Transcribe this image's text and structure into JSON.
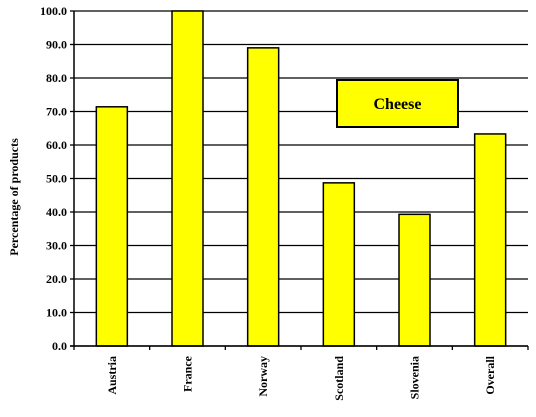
{
  "chart_data": {
    "type": "bar",
    "title": "",
    "xlabel": "",
    "ylabel": "Percentage of products",
    "categories": [
      "Austria",
      "France",
      "Norway",
      "Scotland",
      "Slovenia",
      "Overall"
    ],
    "values": [
      71.4,
      100.0,
      89.0,
      48.7,
      39.3,
      63.3
    ],
    "ylim": [
      0,
      100
    ],
    "yticks": [
      "0.0",
      "10.0",
      "20.0",
      "30.0",
      "40.0",
      "50.0",
      "60.0",
      "70.0",
      "80.0",
      "90.0",
      "100.0"
    ],
    "grid": true,
    "legend": "none",
    "annotation": "Cheese",
    "colors": {
      "bar_fill": "#ffff00",
      "bar_stroke": "#000000",
      "annotation_fill": "#ffff00",
      "grid": "#000000",
      "background": "#ffffff"
    }
  }
}
